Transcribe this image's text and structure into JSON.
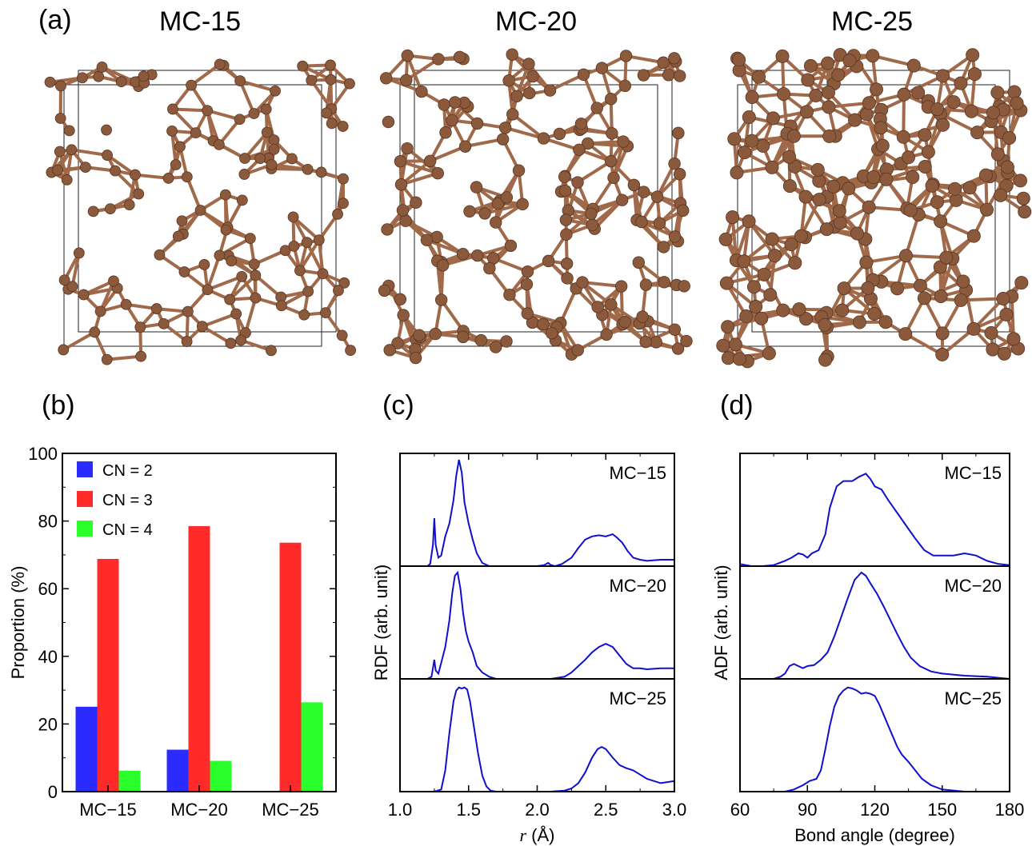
{
  "panels": {
    "a": {
      "label": "(a)",
      "titles": [
        "MC-15",
        "MC-20",
        "MC-25"
      ]
    },
    "b": {
      "label": "(b)"
    },
    "c": {
      "label": "(c)"
    },
    "d": {
      "label": "(d)"
    }
  },
  "colors": {
    "atom": "#8B5A3C",
    "bond": "#A0694A",
    "line": "#1010cc",
    "cn2": "#2b2bff",
    "cn3": "#ff2b2b",
    "cn4": "#2bff2b"
  },
  "chart_data": [
    {
      "type": "bar",
      "panel": "b",
      "categories": [
        "MC−15",
        "MC−20",
        "MC−25"
      ],
      "series": [
        {
          "name": "CN = 2",
          "color": "#2b2bff",
          "values": [
            25.1,
            12.4,
            0
          ]
        },
        {
          "name": "CN = 3",
          "color": "#ff2b2b",
          "values": [
            68.8,
            78.5,
            73.6
          ]
        },
        {
          "name": "CN = 4",
          "color": "#2bff2b",
          "values": [
            6.2,
            9.1,
            26.4
          ]
        }
      ],
      "xlabel": "",
      "ylabel": "Proportion (%)",
      "ylim": [
        0,
        100
      ],
      "yticks": [
        "0",
        "20",
        "40",
        "60",
        "80",
        "100"
      ],
      "legend": "top-left"
    },
    {
      "type": "line",
      "panel": "c",
      "xlabel": "r (Å)",
      "xlabel_italic": "r",
      "xlabel_unit": " (Å)",
      "ylabel": "RDF (arb. unit)",
      "xlim": [
        1.0,
        3.0
      ],
      "xticks": [
        "1.0",
        "1.5",
        "2.0",
        "2.5",
        "3.0"
      ],
      "stacked": true,
      "series": [
        {
          "name": "MC−15",
          "x": [
            1.0,
            1.2,
            1.22,
            1.24,
            1.25,
            1.26,
            1.28,
            1.3,
            1.33,
            1.36,
            1.39,
            1.41,
            1.43,
            1.45,
            1.47,
            1.5,
            1.53,
            1.56,
            1.6,
            1.65,
            1.7,
            1.8,
            1.9,
            2.0,
            2.05,
            2.08,
            2.1,
            2.13,
            2.18,
            2.25,
            2.3,
            2.35,
            2.4,
            2.45,
            2.5,
            2.55,
            2.58,
            2.62,
            2.66,
            2.7,
            2.75,
            2.8,
            2.9,
            3.0
          ],
          "y": [
            0,
            0,
            0.02,
            0.2,
            0.45,
            0.2,
            0.08,
            0.1,
            0.28,
            0.4,
            0.62,
            0.85,
            1.0,
            0.88,
            0.6,
            0.4,
            0.25,
            0.12,
            0.03,
            0,
            0,
            0,
            0,
            0,
            0.01,
            0.03,
            0.01,
            0,
            0.02,
            0.08,
            0.17,
            0.25,
            0.28,
            0.29,
            0.28,
            0.3,
            0.27,
            0.22,
            0.14,
            0.08,
            0.06,
            0.05,
            0.06,
            0.06
          ]
        },
        {
          "name": "MC−20",
          "x": [
            1.0,
            1.2,
            1.23,
            1.25,
            1.26,
            1.28,
            1.3,
            1.33,
            1.36,
            1.38,
            1.4,
            1.42,
            1.44,
            1.46,
            1.48,
            1.5,
            1.53,
            1.56,
            1.6,
            1.65,
            1.7,
            1.8,
            1.9,
            2.0,
            2.1,
            2.2,
            2.25,
            2.3,
            2.35,
            2.4,
            2.45,
            2.5,
            2.55,
            2.6,
            2.65,
            2.7,
            2.75,
            2.8,
            2.9,
            3.0
          ],
          "y": [
            0,
            0,
            0.02,
            0.18,
            0.08,
            0.05,
            0.15,
            0.3,
            0.55,
            0.8,
            0.97,
            1.0,
            0.85,
            0.62,
            0.45,
            0.35,
            0.25,
            0.12,
            0.06,
            0.02,
            0,
            0,
            0,
            0,
            0,
            0.02,
            0.06,
            0.12,
            0.18,
            0.25,
            0.3,
            0.33,
            0.3,
            0.22,
            0.14,
            0.1,
            0.1,
            0.09,
            0.1,
            0.1
          ]
        },
        {
          "name": "MC−25",
          "x": [
            1.0,
            1.25,
            1.3,
            1.33,
            1.36,
            1.39,
            1.41,
            1.43,
            1.45,
            1.47,
            1.49,
            1.51,
            1.54,
            1.57,
            1.6,
            1.63,
            1.66,
            1.7,
            1.8,
            1.9,
            2.0,
            2.1,
            2.2,
            2.25,
            2.3,
            2.35,
            2.4,
            2.44,
            2.47,
            2.5,
            2.55,
            2.6,
            2.65,
            2.7,
            2.75,
            2.8,
            2.9,
            3.0
          ],
          "y": [
            0,
            0,
            0.02,
            0.2,
            0.55,
            0.85,
            0.95,
            0.98,
            0.97,
            0.98,
            0.96,
            0.85,
            0.6,
            0.35,
            0.15,
            0.05,
            0.01,
            0,
            0,
            0,
            0,
            0,
            0.01,
            0.03,
            0.08,
            0.18,
            0.32,
            0.4,
            0.42,
            0.4,
            0.32,
            0.25,
            0.22,
            0.2,
            0.16,
            0.12,
            0.08,
            0.1
          ]
        }
      ]
    },
    {
      "type": "line",
      "panel": "d",
      "xlabel": "Bond angle (degree)",
      "ylabel": "ADF (arb. unit)",
      "xlim": [
        60,
        180
      ],
      "xticks": [
        "60",
        "90",
        "120",
        "150",
        "180"
      ],
      "stacked": true,
      "series": [
        {
          "name": "MC−15",
          "x": [
            60,
            65,
            70,
            75,
            80,
            83,
            86,
            88,
            90,
            92,
            95,
            98,
            100,
            103,
            106,
            110,
            113,
            116,
            118,
            120,
            123,
            126,
            130,
            134,
            138,
            142,
            146,
            150,
            155,
            160,
            165,
            170,
            175,
            180
          ],
          "y": [
            0.02,
            0,
            0,
            0.01,
            0.05,
            0.08,
            0.12,
            0.11,
            0.08,
            0.12,
            0.15,
            0.3,
            0.55,
            0.75,
            0.8,
            0.8,
            0.84,
            0.87,
            0.82,
            0.75,
            0.72,
            0.62,
            0.5,
            0.38,
            0.26,
            0.15,
            0.1,
            0.1,
            0.1,
            0.12,
            0.1,
            0.05,
            0.02,
            0.01
          ]
        },
        {
          "name": "MC−20",
          "x": [
            60,
            70,
            75,
            78,
            80,
            82,
            84,
            86,
            88,
            90,
            93,
            96,
            99,
            102,
            105,
            108,
            111,
            114,
            116,
            118,
            121,
            124,
            127,
            130,
            133,
            136,
            140,
            145,
            150,
            160,
            170,
            180
          ],
          "y": [
            0,
            0,
            0,
            0.02,
            0.05,
            0.12,
            0.14,
            0.12,
            0.1,
            0.12,
            0.13,
            0.18,
            0.25,
            0.4,
            0.58,
            0.76,
            0.93,
            1.0,
            0.97,
            0.9,
            0.8,
            0.68,
            0.55,
            0.42,
            0.3,
            0.2,
            0.12,
            0.07,
            0.05,
            0.03,
            0.02,
            0
          ]
        },
        {
          "name": "MC−25",
          "x": [
            60,
            70,
            80,
            84,
            88,
            91,
            94,
            96,
            98,
            100,
            102,
            104,
            106,
            108,
            110,
            112,
            114,
            116,
            118,
            120,
            122,
            124,
            126,
            128,
            130,
            132,
            135,
            138,
            141,
            145,
            150,
            160,
            170,
            180
          ],
          "y": [
            0,
            0,
            0,
            0.02,
            0.06,
            0.1,
            0.12,
            0.2,
            0.4,
            0.62,
            0.8,
            0.9,
            0.95,
            0.98,
            0.97,
            0.95,
            0.92,
            0.93,
            0.92,
            0.9,
            0.82,
            0.72,
            0.62,
            0.52,
            0.42,
            0.35,
            0.28,
            0.2,
            0.12,
            0.06,
            0.02,
            0,
            0,
            0
          ]
        }
      ]
    }
  ]
}
